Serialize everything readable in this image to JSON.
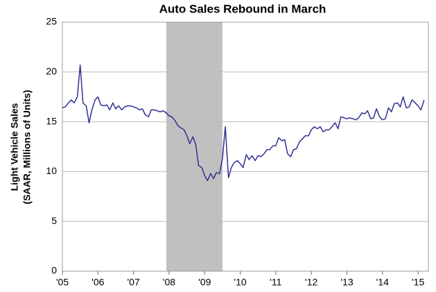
{
  "chart_data": {
    "type": "line",
    "title": "Auto Sales Rebound in March",
    "y_label": [
      "Light Vehicle Sales",
      "(SAAR, Millions of Units)"
    ],
    "x": [
      2005,
      2005.08,
      2005.17,
      2005.25,
      2005.33,
      2005.42,
      2005.5,
      2005.58,
      2005.67,
      2005.75,
      2005.83,
      2005.92,
      2006,
      2006.08,
      2006.17,
      2006.25,
      2006.33,
      2006.42,
      2006.5,
      2006.58,
      2006.67,
      2006.75,
      2006.83,
      2006.92,
      2007,
      2007.08,
      2007.17,
      2007.25,
      2007.33,
      2007.42,
      2007.5,
      2007.58,
      2007.67,
      2007.75,
      2007.83,
      2007.92,
      2008,
      2008.08,
      2008.17,
      2008.25,
      2008.33,
      2008.42,
      2008.5,
      2008.58,
      2008.67,
      2008.75,
      2008.83,
      2008.92,
      2009,
      2009.08,
      2009.17,
      2009.25,
      2009.33,
      2009.42,
      2009.5,
      2009.58,
      2009.67,
      2009.75,
      2009.83,
      2009.92,
      2010,
      2010.08,
      2010.17,
      2010.25,
      2010.33,
      2010.42,
      2010.5,
      2010.58,
      2010.67,
      2010.75,
      2010.83,
      2010.92,
      2011,
      2011.08,
      2011.17,
      2011.25,
      2011.33,
      2011.42,
      2011.5,
      2011.58,
      2011.67,
      2011.75,
      2011.83,
      2011.92,
      2012,
      2012.08,
      2012.17,
      2012.25,
      2012.33,
      2012.42,
      2012.5,
      2012.58,
      2012.67,
      2012.75,
      2012.83,
      2012.92,
      2013,
      2013.08,
      2013.17,
      2013.25,
      2013.33,
      2013.42,
      2013.5,
      2013.58,
      2013.67,
      2013.75,
      2013.83,
      2013.92,
      2014,
      2014.08,
      2014.17,
      2014.25,
      2014.33,
      2014.42,
      2014.5,
      2014.58,
      2014.67,
      2014.75,
      2014.83,
      2014.92,
      2015,
      2015.08,
      2015.17
    ],
    "series": [
      {
        "name": "Light Vehicle Sales",
        "color": "#2e3192",
        "values": [
          16.4,
          16.5,
          16.9,
          17.2,
          16.9,
          17.5,
          20.7,
          16.9,
          16.6,
          14.9,
          16.2,
          17.2,
          17.5,
          16.7,
          16.6,
          16.7,
          16.2,
          16.9,
          16.3,
          16.6,
          16.2,
          16.5,
          16.6,
          16.6,
          16.5,
          16.4,
          16.2,
          16.3,
          15.7,
          15.5,
          16.2,
          16.2,
          16.1,
          16.0,
          16.1,
          15.9,
          15.6,
          15.5,
          15.1,
          14.6,
          14.4,
          14.2,
          13.6,
          12.8,
          13.5,
          12.7,
          10.6,
          10.4,
          9.6,
          9.1,
          9.8,
          9.3,
          9.9,
          9.8,
          11.3,
          14.5,
          9.4,
          10.4,
          10.9,
          11.1,
          10.8,
          10.4,
          11.7,
          11.2,
          11.6,
          11.1,
          11.6,
          11.5,
          11.8,
          12.2,
          12.2,
          12.6,
          12.6,
          13.4,
          13.1,
          13.2,
          11.8,
          11.5,
          12.2,
          12.3,
          13.0,
          13.3,
          13.6,
          13.6,
          14.2,
          14.5,
          14.3,
          14.5,
          14.0,
          14.2,
          14.2,
          14.5,
          14.9,
          14.3,
          15.5,
          15.4,
          15.3,
          15.4,
          15.3,
          15.2,
          15.4,
          15.9,
          15.8,
          16.1,
          15.3,
          15.4,
          16.3,
          15.5,
          15.2,
          15.3,
          16.4,
          16.0,
          16.8,
          16.9,
          16.5,
          17.5,
          16.4,
          16.5,
          17.2,
          16.9,
          16.6,
          16.2,
          17.2
        ]
      }
    ],
    "shaded_regions": [
      [
        2007.92,
        2009.5
      ]
    ],
    "shade_color": "#c0c0c0",
    "xlim": [
      2005,
      2015.29
    ],
    "xticks": [
      {
        "value": 2005,
        "label": "'05"
      },
      {
        "value": 2006,
        "label": "'06"
      },
      {
        "value": 2007,
        "label": "'07"
      },
      {
        "value": 2008,
        "label": "'08"
      },
      {
        "value": 2009,
        "label": "'09"
      },
      {
        "value": 2010,
        "label": "'10"
      },
      {
        "value": 2011,
        "label": "'11"
      },
      {
        "value": 2012,
        "label": "'12"
      },
      {
        "value": 2013,
        "label": "'13"
      },
      {
        "value": 2014,
        "label": "'14"
      },
      {
        "value": 2015,
        "label": "'15"
      }
    ],
    "ylim": [
      0,
      25
    ],
    "yticks": [
      0,
      5,
      10,
      15,
      20,
      25
    ],
    "grid": true
  }
}
